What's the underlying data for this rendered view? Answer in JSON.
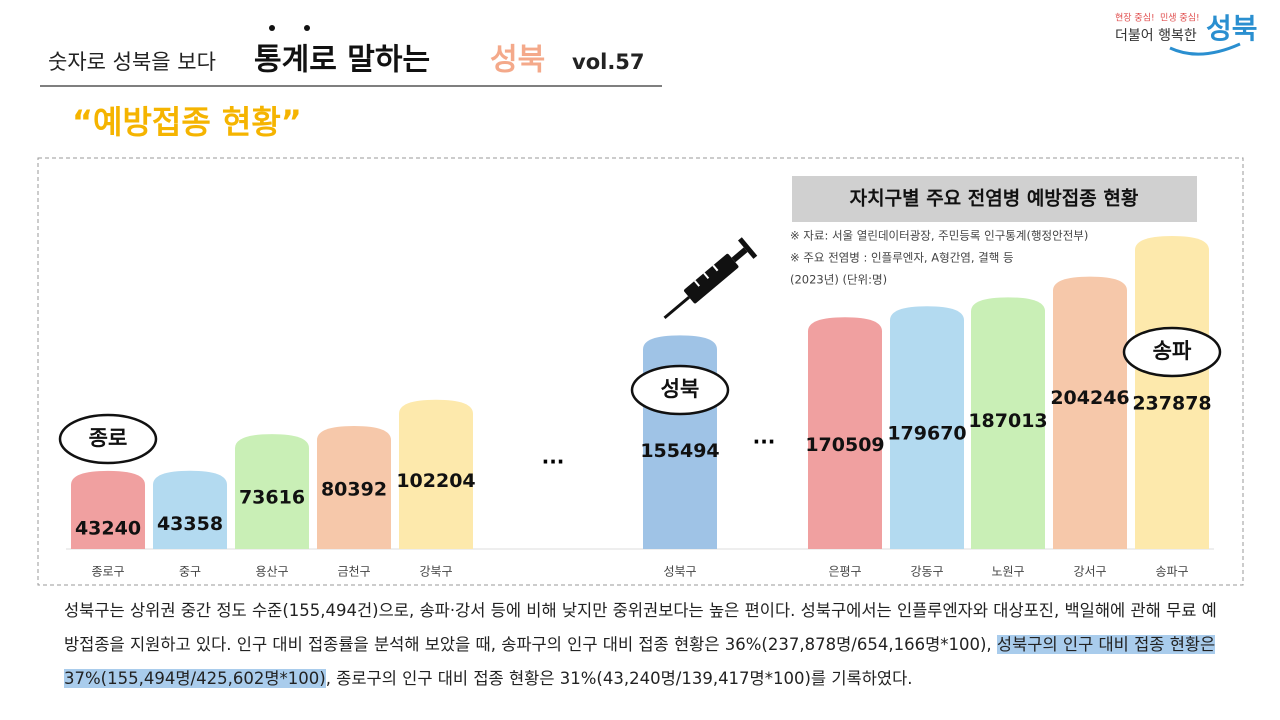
{
  "header": {
    "lead": "숫자로 성북을 보다",
    "main": "통계로 말하는",
    "accent": "성북",
    "volume": "vol.57",
    "subtitle": "“예방접종 현황”"
  },
  "logo": {
    "slogan_1": "현장 중심!",
    "slogan_2": "민생 중심!",
    "phrase": "더불어 행복한",
    "name": "성북"
  },
  "chart_data": {
    "type": "bar",
    "title": "자치구별 주요 전염병 예방접종 현황",
    "notes": [
      "※ 자료: 서울 열린데이터광장, 주민등록 인구통계(행정안전부)",
      "※ 주요 전염병 : 인플루엔자, A형간염, 결핵 등",
      "(2023년) (단위:명)"
    ],
    "categories": [
      "종로구",
      "중구",
      "용산구",
      "금천구",
      "강북구",
      "성북구",
      "은평구",
      "강동구",
      "노원구",
      "강서구",
      "송파구"
    ],
    "values": [
      43240,
      43358,
      73616,
      80392,
      102204,
      155494,
      170509,
      179670,
      187013,
      204246,
      237878
    ],
    "colors": [
      "#f0a0a0",
      "#b3daf0",
      "#c9efb6",
      "#f6c8aa",
      "#fde9ac",
      "#9fc3e6",
      "#f0a0a0",
      "#b3daf0",
      "#c9efb6",
      "#f6c8aa",
      "#fde9ac"
    ],
    "annotations": [
      "...",
      "...",
      "종로",
      "성북",
      "송파"
    ]
  },
  "paragraph": {
    "part_1": "성북구는 상위권 중간 정도 수준(155,494건)으로, 송파·강서 등에 비해 낮지만 중위권보다는 높은 편이다. 성북구에서는 인플루엔자와 대상포진, 백일해에 관해 무료 예방접종을 지원하고 있다. 인구 대비 접종률을 분석해 보았을 때, 송파구의 인구 대비 접종 현황은 36%(237,878명/654,166명*100), ",
    "highlight": "성북구의 인구 대비 접종 현황은 37%(155,494명/425,602명*100)",
    "part_2": ", 종로구의 인구 대비 접종 현황은 31%(43,240명/139,417명*100)를 기록하였다."
  }
}
